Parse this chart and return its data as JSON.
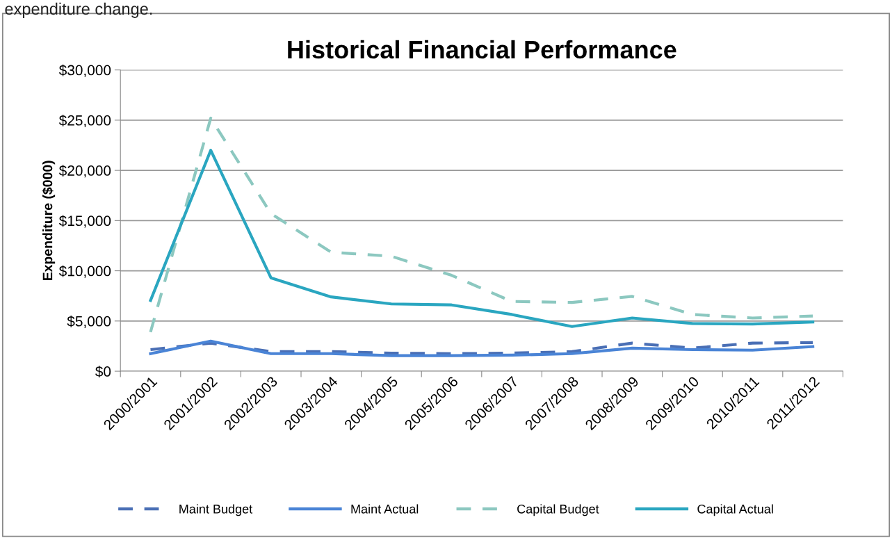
{
  "chart_data": {
    "type": "line",
    "title": "Historical Financial Performance",
    "ylabel": "Expenditure ($000)",
    "annotations": [
      "expenditure change."
    ],
    "categories": [
      "2000/2001",
      "2001/2002",
      "2002/2003",
      "2003/2004",
      "2004/2005",
      "2005/2006",
      "2006/2007",
      "2007/2008",
      "2008/2009",
      "2009/2010",
      "2010/2011",
      "2011/2012"
    ],
    "series": [
      {
        "name": "Maint Budget",
        "color": "#4a6fb5",
        "line_style": "dashed",
        "values": [
          2150,
          2800,
          1950,
          1950,
          1800,
          1750,
          1800,
          1950,
          2800,
          2300,
          2800,
          2850
        ]
      },
      {
        "name": "Maint Actual",
        "color": "#4a84d6",
        "line_style": "solid",
        "values": [
          1750,
          3000,
          1750,
          1750,
          1550,
          1550,
          1600,
          1750,
          2300,
          2150,
          2100,
          2450
        ]
      },
      {
        "name": "Capital Budget",
        "color": "#8cc8c0",
        "line_style": "dashed",
        "values": [
          3900,
          25200,
          15700,
          11850,
          11450,
          9550,
          6950,
          6850,
          7450,
          5650,
          5300,
          5500
        ]
      },
      {
        "name": "Capital Actual",
        "color": "#2aa6c0",
        "line_style": "solid",
        "values": [
          7050,
          22000,
          9300,
          7400,
          6700,
          6600,
          5650,
          4450,
          5300,
          4750,
          4700,
          4900
        ]
      }
    ],
    "ylim": [
      0,
      30000
    ],
    "yticks": [
      {
        "value": 0,
        "label": "$0"
      },
      {
        "value": 5000,
        "label": "$5,000"
      },
      {
        "value": 10000,
        "label": "$10,000"
      },
      {
        "value": 15000,
        "label": "$15,000"
      },
      {
        "value": 20000,
        "label": "$20,000"
      },
      {
        "value": 25000,
        "label": "$25,000"
      },
      {
        "value": 30000,
        "label": "$30,000"
      }
    ],
    "grid": "y",
    "legend": "bottom",
    "marker": "none"
  }
}
